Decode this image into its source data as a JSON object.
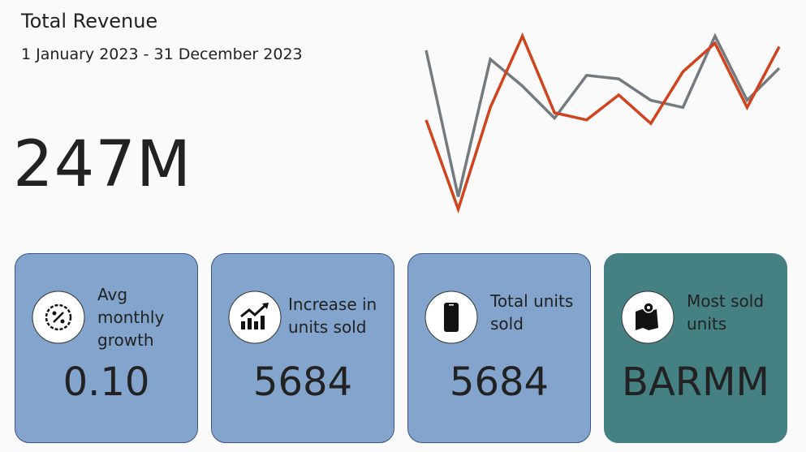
{
  "header": {
    "title": "Total Revenue",
    "subtitle": "1 January 2023 - 31 December 2023",
    "value": "247M"
  },
  "chart_data": {
    "type": "line",
    "ylim": [
      0,
      100
    ],
    "series": [
      {
        "color": "#737a80",
        "values": [
          90,
          8,
          85,
          70,
          52,
          76,
          74,
          62,
          58,
          98,
          62,
          80
        ]
      },
      {
        "color": "#d0431c",
        "values": [
          51,
          1,
          58,
          98,
          55,
          51,
          65,
          49,
          78,
          94,
          58,
          92
        ]
      }
    ]
  },
  "cards": [
    {
      "label": "Avg monthly growth",
      "value": "0.10"
    },
    {
      "label": "Increase in units sold",
      "value": "5684"
    },
    {
      "label": "Total units sold",
      "value": "5684"
    },
    {
      "label": "Most sold units",
      "value": "BARMM"
    }
  ]
}
